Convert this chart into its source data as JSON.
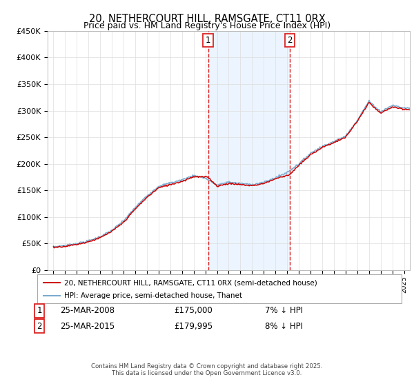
{
  "title": "20, NETHERCOURT HILL, RAMSGATE, CT11 0RX",
  "subtitle": "Price paid vs. HM Land Registry's House Price Index (HPI)",
  "legend_line1": "20, NETHERCOURT HILL, RAMSGATE, CT11 0RX (semi-detached house)",
  "legend_line2": "HPI: Average price, semi-detached house, Thanet",
  "annotation1_label": "1",
  "annotation1_date": "25-MAR-2008",
  "annotation1_price": "£175,000",
  "annotation1_hpi": "7% ↓ HPI",
  "annotation1_year": 2008.23,
  "annotation2_label": "2",
  "annotation2_date": "25-MAR-2015",
  "annotation2_price": "£179,995",
  "annotation2_hpi": "8% ↓ HPI",
  "annotation2_year": 2015.23,
  "footer": "Contains HM Land Registry data © Crown copyright and database right 2025.\nThis data is licensed under the Open Government Licence v3.0.",
  "ylim": [
    0,
    450000
  ],
  "xlim": [
    1994.5,
    2025.5
  ],
  "y_ticks": [
    0,
    50000,
    100000,
    150000,
    200000,
    250000,
    300000,
    350000,
    400000,
    450000
  ],
  "y_tick_labels": [
    "£0",
    "£50K",
    "£100K",
    "£150K",
    "£200K",
    "£250K",
    "£300K",
    "£350K",
    "£400K",
    "£450K"
  ],
  "line_color_red": "#cc0000",
  "line_color_blue": "#7aabcf",
  "shade_color": "#c8dff0",
  "vline_color": "#dd2222",
  "vspan_color": "#ddeeff",
  "background_color": "#ffffff"
}
